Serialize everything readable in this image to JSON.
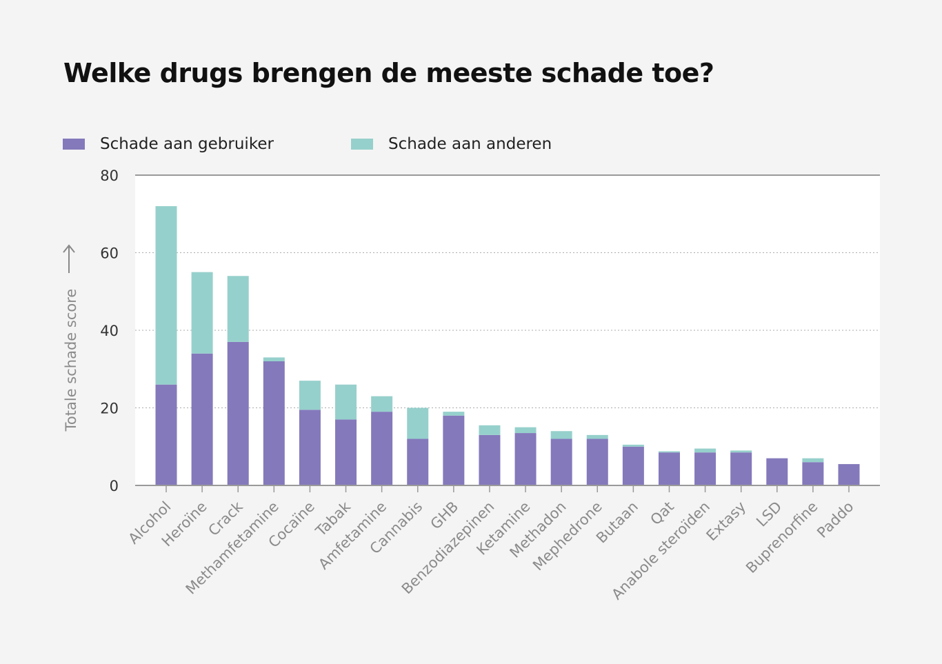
{
  "chart_data": {
    "type": "bar",
    "stacked": true,
    "title": "Welke drugs brengen de meeste schade toe?",
    "xlabel": "",
    "ylabel": "Totale schade score",
    "ylim": [
      0,
      80
    ],
    "yticks": [
      0,
      20,
      40,
      60,
      80
    ],
    "grid": true,
    "legend_position": "top-left",
    "categories": [
      "Alcohol",
      "Heroïne",
      "Crack",
      "Methamfetamine",
      "Cocaïne",
      "Tabak",
      "Amfetamine",
      "Cannabis",
      "GHB",
      "Benzodiazepinen",
      "Ketamine",
      "Methadon",
      "Mephedrone",
      "Butaan",
      "Qat",
      "Anabole steroïden",
      "Extasy",
      "LSD",
      "Buprenorfine",
      "Paddo"
    ],
    "series": [
      {
        "name": "Schade aan gebruiker",
        "color": "#8479bb",
        "values": [
          26,
          34,
          37,
          32,
          19.5,
          17,
          19,
          12,
          18,
          13,
          13.5,
          12,
          12,
          10,
          8.5,
          8.5,
          8.5,
          7,
          6,
          5.5
        ]
      },
      {
        "name": "Schade aan anderen",
        "color": "#96d0cc",
        "values": [
          46,
          21,
          17,
          1,
          7.5,
          9,
          4,
          8,
          1,
          2.5,
          1.5,
          2,
          1,
          0.5,
          0.3,
          1,
          0.5,
          0,
          1,
          0
        ]
      }
    ]
  }
}
